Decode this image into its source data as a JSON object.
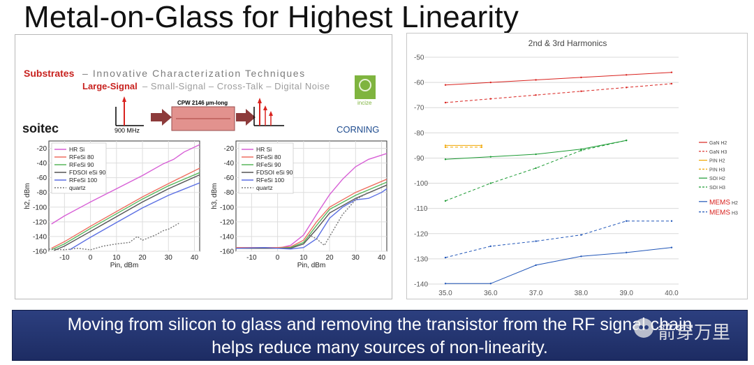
{
  "slide_title": "Metal-on-Glass for Highest Linearity",
  "left": {
    "substrates": "Substrates",
    "headline_rest": "– Innovative Characterization Techniques",
    "large_signal": "Large-Signal",
    "subline_rest": " – Small-Signal – Cross-Talk – Digital Noise",
    "soitec": "soitec",
    "corning": "CORNING",
    "incize": "incize",
    "cpw_label": "CPW 2146 µm-long",
    "freq_label": "900 MHz"
  },
  "banner": {
    "line1": "Moving from silicon to glass and removing the transistor from the RF signal chain",
    "line2": "helps reduce many sources of non-linearity."
  },
  "watermark": "箭穿万里",
  "colors": {
    "hrsi": "#d75fd6",
    "rfesi80": "#ef6f60",
    "rfesi90": "#58b65c",
    "fdsoi": "#555555",
    "rfesi100": "#5b6fe3",
    "quartz": "#777777",
    "gan": "#d9231f",
    "pin": "#f0a500",
    "soi": "#1a9a32",
    "mems": "#2156b8",
    "banner_bg": "#24356f",
    "substrates_red": "#c8221f"
  },
  "chart_data": [
    {
      "type": "line",
      "title": "",
      "xlabel": "Pin, dBm",
      "ylabel": "h2, dBm",
      "xlim": [
        -16,
        42
      ],
      "ylim": [
        -160,
        -10
      ],
      "xticks": [
        -10,
        0,
        10,
        20,
        30,
        40
      ],
      "yticks": [
        -160,
        -140,
        -120,
        -100,
        -80,
        -60,
        -40,
        -20
      ],
      "legend": "top-left",
      "series": [
        {
          "name": "HR Si",
          "color": "#d75fd6",
          "dash": false,
          "x": [
            -15,
            -10,
            0,
            10,
            20,
            28,
            32,
            36,
            42
          ],
          "y": [
            -123,
            -112,
            -93,
            -75,
            -57,
            -41,
            -35,
            -25,
            -15
          ]
        },
        {
          "name": "RFeSi 80",
          "color": "#ef6f60",
          "dash": false,
          "x": [
            -15,
            -10,
            0,
            10,
            20,
            30,
            42
          ],
          "y": [
            -156,
            -147,
            -126,
            -106,
            -86,
            -68,
            -47
          ]
        },
        {
          "name": "RFeSi 90",
          "color": "#58b65c",
          "dash": false,
          "x": [
            -15,
            -10,
            0,
            10,
            20,
            30,
            42
          ],
          "y": [
            -158,
            -150,
            -129,
            -109,
            -89,
            -71,
            -53
          ]
        },
        {
          "name": "FDSOI eSi 90",
          "color": "#555555",
          "dash": false,
          "x": [
            -14,
            -10,
            0,
            10,
            20,
            30,
            42
          ],
          "y": [
            -159,
            -153,
            -133,
            -113,
            -93,
            -75,
            -56
          ]
        },
        {
          "name": "RFeSi 100",
          "color": "#5b6fe3",
          "dash": false,
          "x": [
            -8,
            0,
            10,
            20,
            30,
            42
          ],
          "y": [
            -158,
            -141,
            -121,
            -101,
            -84,
            -67
          ]
        },
        {
          "name": "quartz",
          "color": "#777777",
          "dash": true,
          "x": [
            -16,
            -10,
            -5,
            0,
            5,
            10,
            15,
            18,
            20,
            25,
            28,
            30,
            32,
            34
          ],
          "y": [
            -157,
            -158,
            -156,
            -158,
            -153,
            -150,
            -148,
            -140,
            -145,
            -138,
            -132,
            -130,
            -126,
            -122
          ]
        }
      ]
    },
    {
      "type": "line",
      "title": "",
      "xlabel": "Pin, dBm",
      "ylabel": "h3, dBm",
      "xlim": [
        -16,
        42
      ],
      "ylim": [
        -160,
        -10
      ],
      "xticks": [
        -10,
        0,
        10,
        20,
        30,
        40
      ],
      "yticks": [
        -160,
        -140,
        -120,
        -100,
        -80,
        -60,
        -40,
        -20
      ],
      "legend": "top-left",
      "series": [
        {
          "name": "HR Si",
          "color": "#d75fd6",
          "dash": false,
          "x": [
            -16,
            -10,
            0,
            5,
            10,
            15,
            20,
            25,
            30,
            35,
            42
          ],
          "y": [
            -155,
            -155,
            -156,
            -152,
            -138,
            -110,
            -83,
            -62,
            -45,
            -35,
            -27
          ]
        },
        {
          "name": "RFeSi 80",
          "color": "#ef6f60",
          "dash": false,
          "x": [
            -16,
            -5,
            0,
            5,
            10,
            15,
            20,
            30,
            42
          ],
          "y": [
            -155,
            -155,
            -155,
            -154,
            -145,
            -120,
            -100,
            -80,
            -62
          ]
        },
        {
          "name": "RFeSi 90",
          "color": "#58b65c",
          "dash": false,
          "x": [
            -16,
            -5,
            0,
            5,
            10,
            15,
            20,
            30,
            42
          ],
          "y": [
            -156,
            -156,
            -156,
            -155,
            -148,
            -125,
            -103,
            -84,
            -66
          ]
        },
        {
          "name": "FDSOI eSi 90",
          "color": "#555555",
          "dash": false,
          "x": [
            -16,
            -5,
            0,
            5,
            10,
            15,
            20,
            30,
            42
          ],
          "y": [
            -156,
            -156,
            -156,
            -156,
            -150,
            -130,
            -108,
            -88,
            -70
          ]
        },
        {
          "name": "RFeSi 100",
          "color": "#5b6fe3",
          "dash": false,
          "x": [
            -16,
            -5,
            0,
            5,
            10,
            15,
            20,
            25,
            30,
            35,
            40,
            42
          ],
          "y": [
            -156,
            -155,
            -156,
            -157,
            -155,
            -143,
            -115,
            -100,
            -90,
            -88,
            -80,
            -75
          ]
        },
        {
          "name": "quartz",
          "color": "#777777",
          "dash": true,
          "x": [
            12,
            15,
            18,
            20,
            25,
            30,
            35
          ],
          "y": [
            -138,
            -143,
            -152,
            -140,
            -110,
            -90,
            -80
          ]
        }
      ]
    },
    {
      "type": "line",
      "title": "2nd & 3rd Harmonics",
      "xlabel": "",
      "ylabel": "",
      "xlim": [
        35.0,
        40.0
      ],
      "ylim": [
        -140,
        -50
      ],
      "xticks": [
        "35.0",
        "36.0",
        "37.0",
        "38.0",
        "39.0",
        "40.0"
      ],
      "yticks": [
        -140,
        -130,
        -120,
        -110,
        -100,
        -90,
        -80,
        -70,
        -60,
        -50
      ],
      "legend": "right",
      "series": [
        {
          "name": "GaN H2",
          "color": "#d9231f",
          "dash": false,
          "x": [
            35,
            36,
            37,
            38,
            39,
            40
          ],
          "y": [
            -61,
            -60,
            -59,
            -58,
            -57,
            -56
          ]
        },
        {
          "name": "GaN H3",
          "color": "#d9231f",
          "dash": true,
          "x": [
            35,
            36,
            37,
            38,
            39,
            40
          ],
          "y": [
            -68,
            -66.5,
            -65,
            -63.5,
            -62,
            -60.5
          ]
        },
        {
          "name": "PIN H2",
          "color": "#f0a500",
          "dash": false,
          "x": [
            35,
            35.8
          ],
          "y": [
            -85,
            -85
          ]
        },
        {
          "name": "PIN H3",
          "color": "#f0a500",
          "dash": true,
          "x": [
            35,
            35.8
          ],
          "y": [
            -85.7,
            -85.7
          ]
        },
        {
          "name": "SOI H2",
          "color": "#1a9a32",
          "dash": false,
          "x": [
            35,
            36,
            37,
            38,
            39
          ],
          "y": [
            -90.5,
            -89.5,
            -88.5,
            -86.5,
            -83
          ]
        },
        {
          "name": "SOI H3",
          "color": "#1a9a32",
          "dash": true,
          "x": [
            35,
            36,
            37,
            38,
            39
          ],
          "y": [
            -107,
            -100,
            -94,
            -87,
            -83
          ]
        },
        {
          "name": "MEMS H2",
          "color": "#2156b8",
          "dash": false,
          "x": [
            35,
            36,
            37,
            38,
            39,
            40
          ],
          "y": [
            -139.8,
            -139.8,
            -132.5,
            -129,
            -127.5,
            -125.5
          ]
        },
        {
          "name": "MEMS H3",
          "color": "#2156b8",
          "dash": true,
          "x": [
            35,
            36,
            37,
            38,
            39,
            40
          ],
          "y": [
            -129.5,
            -125,
            -123,
            -120.5,
            -115,
            -115
          ]
        }
      ]
    }
  ]
}
